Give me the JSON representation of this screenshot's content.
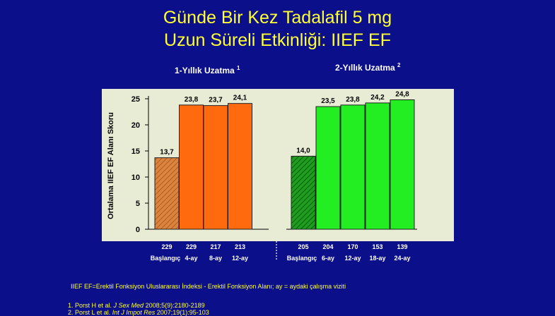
{
  "title_line1": "Günde Bir Kez Tadalafil 5 mg",
  "title_line2": "Uzun Süreli Etkinliği: IIEF EF",
  "group1_title": "1-Yıllık Uzatma",
  "group1_sup": "1",
  "group2_title": "2-Yıllık Uzatma",
  "group2_sup": "2",
  "footnote": "IIEF EF=Erektil Fonksiyon Uluslararası İndeksi - Erektil Fonksiyon Alanı; ay = aydaki çalışma viziti",
  "ref1_prefix": "1. Porst H et al. ",
  "ref1_journal": "J Sex Med",
  "ref1_suffix": " 2008;5(9):2180-2189",
  "ref2_prefix": "2. Porst L et al. ",
  "ref2_journal": "Int J Impot Res",
  "ref2_suffix": " 2007;19(1):95-103",
  "colors": {
    "background": "#0b0f8a",
    "plot_area": "#e9ecd5",
    "title": "#ffff33",
    "orange": "#ff6a0f",
    "orange_hatched": "#d9843f",
    "green": "#22ee22",
    "green_hatched": "#1a9a1a"
  },
  "chart_data": {
    "type": "bar",
    "ylabel": "Ortalama IIEF EF Alanı Skoru",
    "ylim": [
      0,
      25
    ],
    "yticks": [
      0,
      5,
      10,
      15,
      20,
      25
    ],
    "groups": [
      {
        "name": "1-Yıllık Uzatma",
        "color": "#ff6a0f",
        "categories": [
          "Başlangıç",
          "4-ay",
          "8-ay",
          "12-ay"
        ],
        "values": [
          13.7,
          23.8,
          23.7,
          24.1
        ],
        "value_labels": [
          "13,7",
          "23,8",
          "23,7",
          "24,1"
        ],
        "n": [
          "229",
          "229",
          "217",
          "213"
        ],
        "hatched": [
          true,
          false,
          false,
          false
        ]
      },
      {
        "name": "2-Yıllık Uzatma",
        "color": "#22ee22",
        "categories": [
          "Başlangıç",
          "6-ay",
          "12-ay",
          "18-ay",
          "24-ay"
        ],
        "values": [
          14.0,
          23.5,
          23.8,
          24.2,
          24.8
        ],
        "value_labels": [
          "14,0",
          "23,5",
          "23,8",
          "24,2",
          "24,8"
        ],
        "n": [
          "205",
          "204",
          "170",
          "153",
          "139"
        ],
        "hatched": [
          true,
          false,
          false,
          false,
          false
        ]
      }
    ]
  }
}
